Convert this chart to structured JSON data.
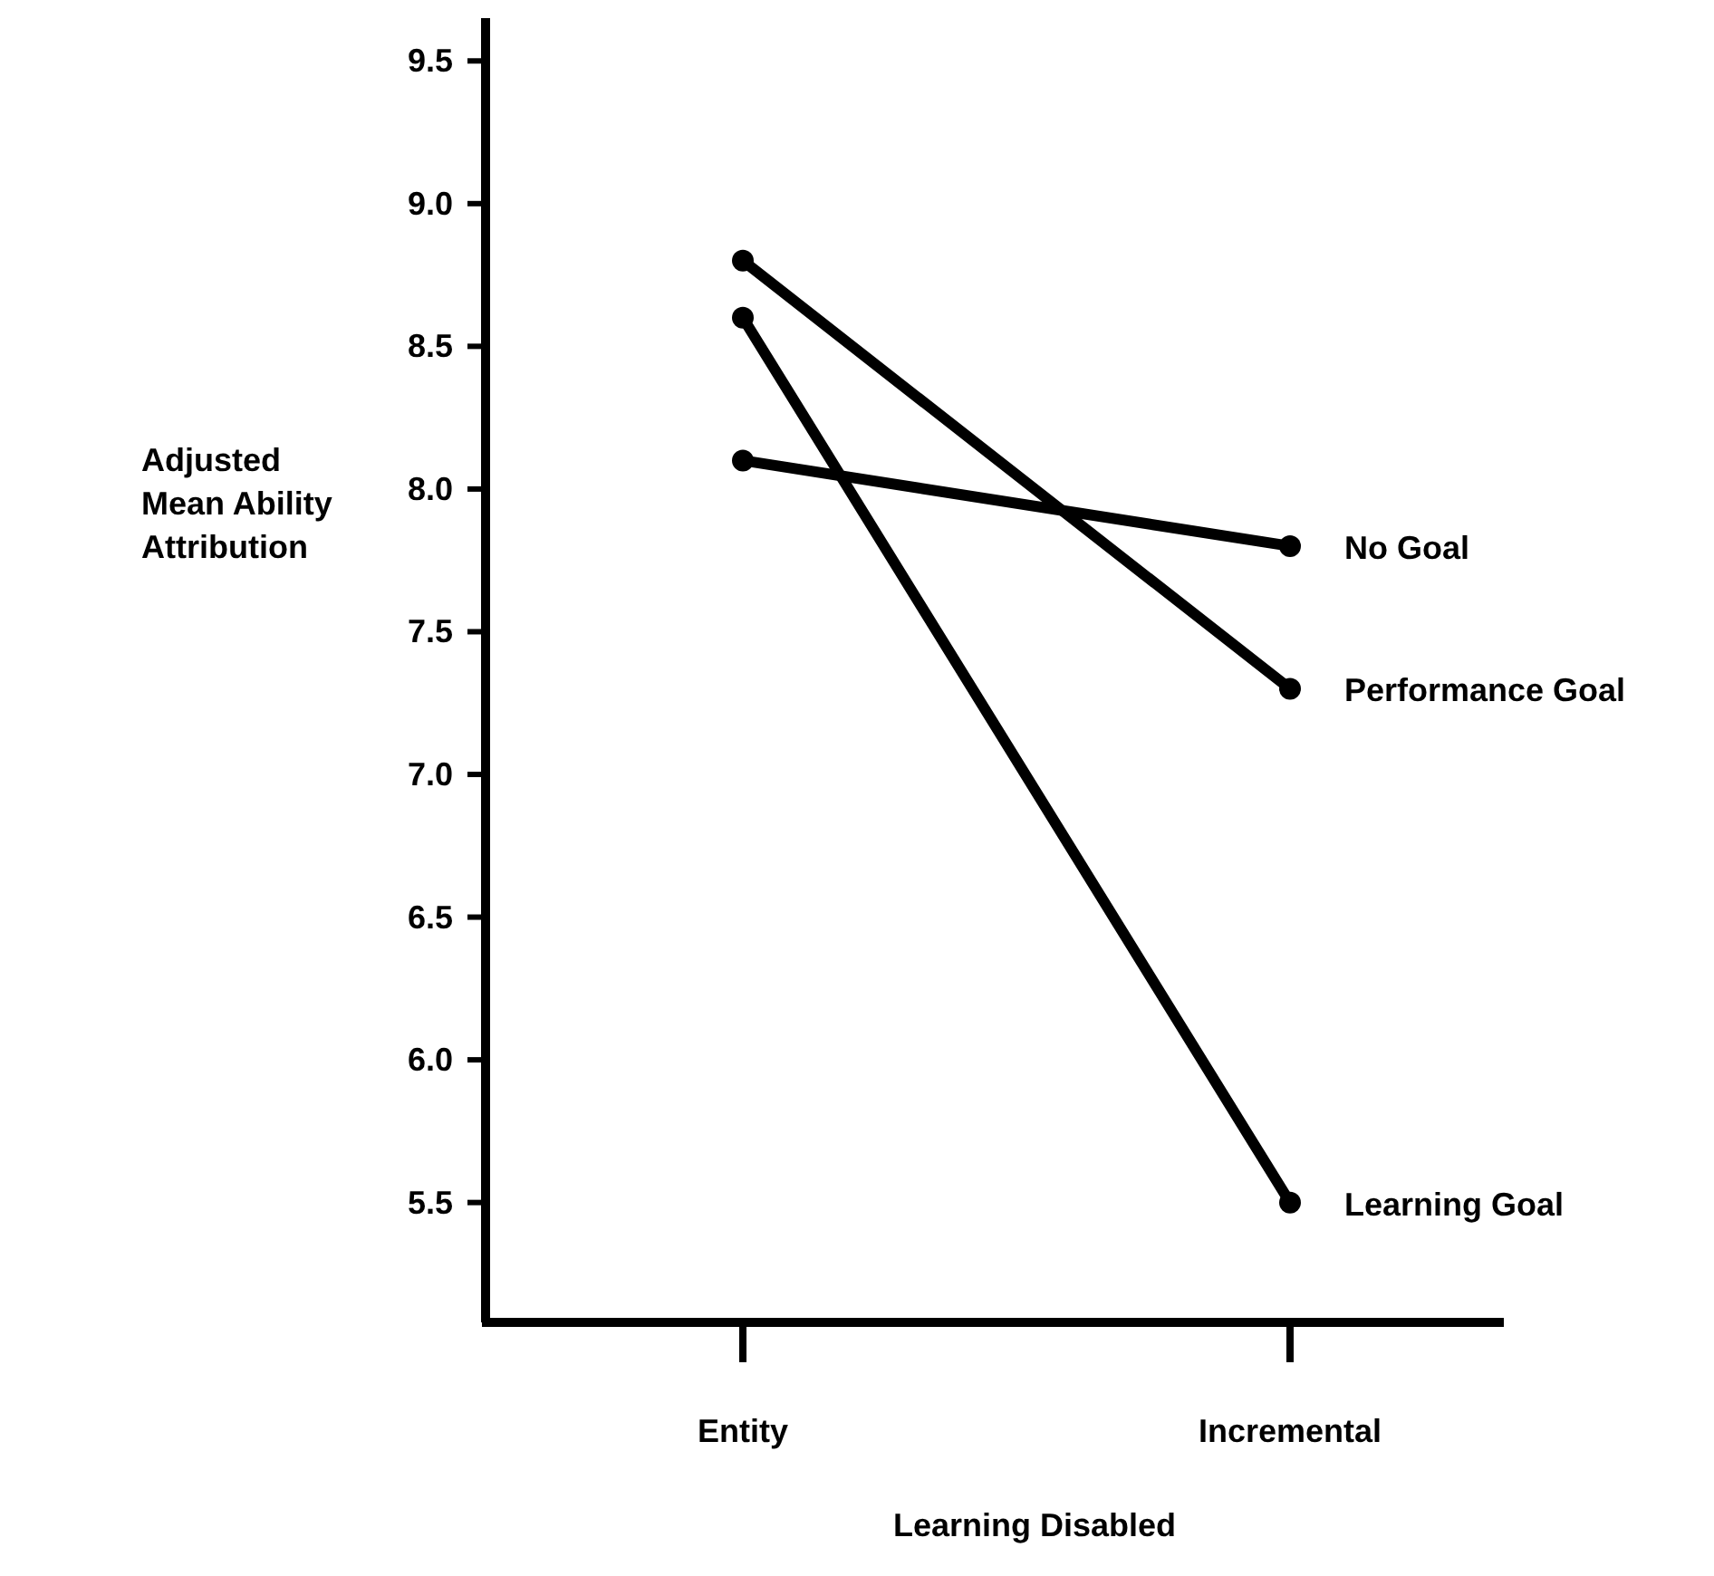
{
  "chart_data": {
    "type": "line",
    "xlabel": "Learning Disabled",
    "ylabel": "Adjusted Mean Ability Attribution",
    "categories": [
      "Entity",
      "Incremental"
    ],
    "series": [
      {
        "name": "No Goal",
        "color": "#000000",
        "values": [
          8.1,
          7.8
        ]
      },
      {
        "name": "Performance Goal",
        "color": "#000000",
        "values": [
          8.8,
          7.3
        ]
      },
      {
        "name": "Learning Goal",
        "color": "#000000",
        "values": [
          8.6,
          5.5
        ]
      }
    ],
    "ylim": [
      5.08,
      9.65
    ],
    "yticks": [
      5.5,
      {
        "value": 6,
        "label": "6.0"
      },
      6.5,
      {
        "value": 7,
        "label": "7.0"
      },
      7.5,
      {
        "value": 8,
        "label": "8.0"
      },
      8.5,
      {
        "value": 9,
        "label": "9.0"
      },
      9.5
    ],
    "marker": "circle",
    "line_style": "solid",
    "grid": false
  }
}
